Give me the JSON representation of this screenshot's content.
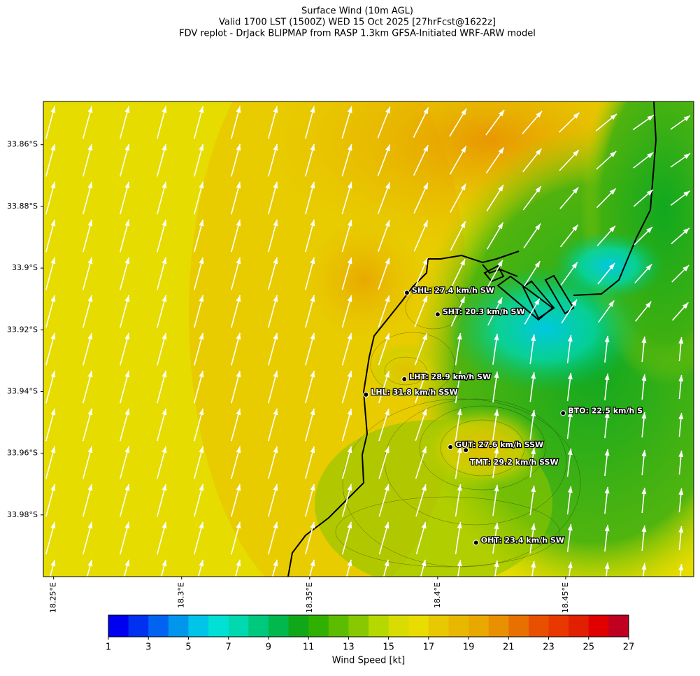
{
  "chart_data": {
    "type": "map",
    "title": [
      "Surface Wind (10m AGL)",
      "Valid 1700 LST (1500Z) WED 15 Oct 2025 [27hrFcst@1622z]",
      "FDV replot - DrJack BLIPMAP from RASP 1.3km GFSA-Initiated WRF-ARW model"
    ],
    "xlim": [
      18.246,
      18.5
    ],
    "ylim": [
      -34.0,
      -33.846
    ],
    "xticks": [
      {
        "value": 18.25,
        "label": "18.25°E"
      },
      {
        "value": 18.3,
        "label": "18.3°E"
      },
      {
        "value": 18.35,
        "label": "18.35°E"
      },
      {
        "value": 18.4,
        "label": "18.4°E"
      },
      {
        "value": 18.45,
        "label": "18.45°E"
      }
    ],
    "yticks": [
      {
        "value": -33.86,
        "label": "33.86°S"
      },
      {
        "value": -33.88,
        "label": "33.88°S"
      },
      {
        "value": -33.9,
        "label": "33.9°S"
      },
      {
        "value": -33.92,
        "label": "33.92°S"
      },
      {
        "value": -33.94,
        "label": "33.94°S"
      },
      {
        "value": -33.96,
        "label": "33.96°S"
      },
      {
        "value": -33.98,
        "label": "33.98°S"
      }
    ],
    "stations": [
      {
        "label": "SHL: 27.4 km/h SW",
        "lon": 18.388,
        "lat": -33.908
      },
      {
        "label": "SHT: 20.3 km/h SW",
        "lon": 18.4,
        "lat": -33.915
      },
      {
        "label": "LHT: 28.9 km/h SW",
        "lon": 18.387,
        "lat": -33.936
      },
      {
        "label": "LHL: 31.8 km/h SSW",
        "lon": 18.372,
        "lat": -33.941
      },
      {
        "label": "BTO: 22.5 km/h S",
        "lon": 18.449,
        "lat": -33.947
      },
      {
        "label": "GUT: 27.6 km/h SSW",
        "lon": 18.405,
        "lat": -33.958
      },
      {
        "label": "TMT: 29.2 km/h SSW",
        "lon": 18.411,
        "lat": -33.959
      },
      {
        "label": "OHT: 23.4 km/h SW",
        "lon": 18.415,
        "lat": -33.989
      }
    ],
    "colorbar": {
      "label": "Wind Speed [kt]",
      "lim": [
        1,
        27
      ],
      "ticks": [
        1,
        3,
        5,
        7,
        9,
        11,
        13,
        15,
        17,
        19,
        21,
        23,
        25,
        27
      ],
      "colors": [
        "#0000f0",
        "#0030f0",
        "#0064f0",
        "#0096ec",
        "#00c4e8",
        "#00e0d4",
        "#00d8b0",
        "#00c87c",
        "#00b84c",
        "#10a818",
        "#30b000",
        "#5cbc00",
        "#88c800",
        "#b4d800",
        "#d8dc00",
        "#e8dc00",
        "#e8c800",
        "#e8b800",
        "#e8a800",
        "#e89000",
        "#e87000",
        "#e85000",
        "#e83800",
        "#e02000",
        "#e00000",
        "#c00020"
      ]
    }
  }
}
